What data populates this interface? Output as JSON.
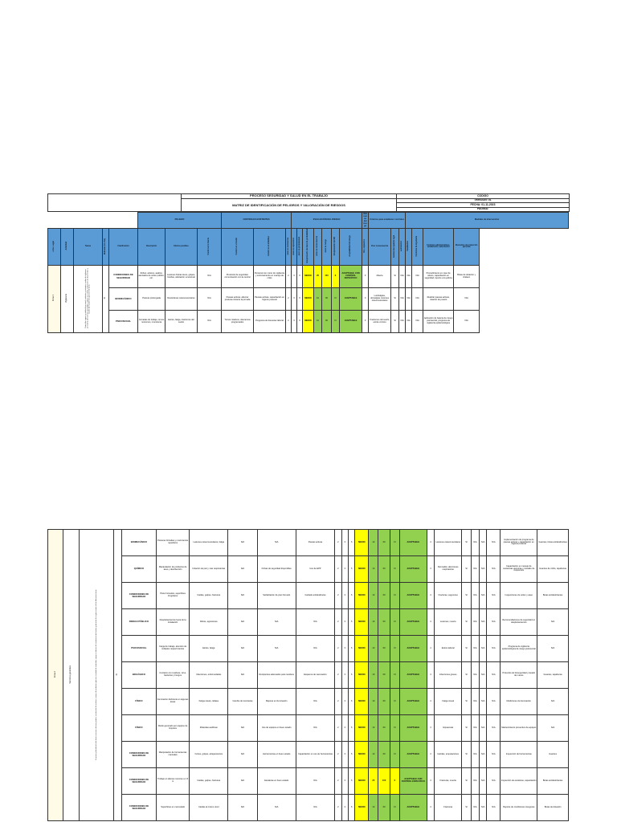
{
  "header": {
    "title1": "PROCESO SEGURIDAD Y SALUD EN EL TRABAJO",
    "title2": "MATRIZ DE IDENTIFICACIÓN DE PELIGROS Y VALORACIÓN DE RIESGOS",
    "code": "CODIGO",
    "version": "VERSION: 01",
    "date": "FECHA: 01-11-2023",
    "page": "PAGINA:"
  },
  "groups": {
    "peligro": "PELIGRO",
    "controles": "CONTROLES EXISTENTES",
    "evaluacion": "EVALUACIÓN DEL RIESGO",
    "valoracion": "Valoración del riesgo",
    "criterios": "Criterios para establecer controles",
    "medidas": "Medidas de intervención"
  },
  "columns": {
    "proceso": "Zona / Lugar",
    "actividad": "Actividad",
    "tareas": "Tareas",
    "rutinario": "Rutinario (Si o No)",
    "clasificacion": "Clasificación",
    "descripcion": "Descripción",
    "efectos": "Efectos posibles",
    "fuente": "Control en la fuente",
    "medio": "Control en el medio",
    "individuo": "Control en el individuo",
    "nd": "Nivel de deficiencia",
    "ne": "Nivel de exposición",
    "np": "Nivel de probabilidad",
    "interp_np": "Interpretación del nivel de probabilidad",
    "nc": "Nivel de consecuencia",
    "nr": "Nivel de riesgo",
    "interp_nr": "Interpretación del NR",
    "aceptabilidad": "Aceptabilidad del riesgo",
    "expuestos": "Nro. expuestos",
    "peor": "Peor consecuencia",
    "requisito": "Existencia requisito legal",
    "eliminacion": "Eliminación",
    "sustitucion": "Sustitución",
    "ingenieria": "Controles de ingeniería",
    "administrativos": "Controles administrativos, señalización, advertencia",
    "epp": "Elementos de protección personal"
  },
  "top_section": {
    "zona": "Zona 1",
    "actividad": "Vigilancia",
    "tareas": "Agentes de seguridad",
    "rutinario": "SI",
    "task_description": "Control de ingreso y salida de personal, vehículos y visitantes, rondas de vigilancia perimetral, atención de novedades, registro en minuta, verificación de documentos y reporte de eventos al supervisor de turno.",
    "rows": [
      {
        "clasificacion": "CONDICIONES DE SEGURIDAD",
        "descripcion": "Robos, atracos, asaltos, atentados de orden público, etc.",
        "efectos": "Lesiones físicas leves, golpes, heridas, afectación emocional",
        "fuente": "N/A",
        "medio": "Protocolo de seguridad, comunicación con la central",
        "individuo": "Personal con curso de vigilancia y entrenamiento en manejo de crisis",
        "nd": "2",
        "ne": "3",
        "np": "6",
        "interp_np": "MEDIO",
        "nc": "25",
        "nr": "150",
        "interp_nr": "II",
        "nivel_color": "yellow",
        "aceptabilidad": "ACEPTABLE CON CONTROL ESPECÍFICO",
        "expuestos": "3",
        "peor": "Muerte",
        "requisito": "SI",
        "eliminacion": "N/A",
        "sustitucion": "N/A",
        "ingenieria": "N/A",
        "administrativos": "Procedimiento en caso de atraco, capacitación en seguridad, reporte a la policía",
        "epp": "Botas de dotación y chaleco"
      },
      {
        "clasificacion": "BIOMECÁNICO",
        "descripcion": "Postura prolongada",
        "efectos": "Desórdenes osteomusculares",
        "fuente": "N/A",
        "medio": "Pausas activas, alternar posturas durante la jornada",
        "individuo": "Pausas activas, capacitación en higiene postural",
        "nd": "2",
        "ne": "3",
        "np": "6",
        "interp_np": "MEDIO",
        "nc": "10",
        "nr": "60",
        "interp_nr": "III",
        "nivel_color": "green",
        "aceptabilidad": "ACEPTABLE",
        "expuestos": "3",
        "peor": "Lumbalgias, dorsalgias, lesiones osteomusculares",
        "requisito": "SI",
        "eliminacion": "N/A",
        "sustitucion": "N/A",
        "ingenieria": "N/A",
        "administrativos": "Realizar pausas activas, rotación de puesto",
        "epp": "N/A"
      },
      {
        "clasificacion": "PSICOSOCIAL",
        "descripcion": "Jornadas de trabajo, turnos nocturnos, monotonía",
        "efectos": "Estrés, fatiga, trastornos del sueño",
        "fuente": "N/A",
        "medio": "Turnos rotativos, descansos programados",
        "individuo": "Programa de bienestar laboral",
        "nd": "2",
        "ne": "3",
        "np": "6",
        "interp_np": "MEDIO",
        "nc": "10",
        "nr": "60",
        "interp_nr": "III",
        "nivel_color": "green",
        "aceptabilidad": "ACEPTABLE",
        "expuestos": "3",
        "peor": "Trastornos del sueño, estrés crónico",
        "requisito": "SI",
        "eliminacion": "N/A",
        "sustitucion": "N/A",
        "ingenieria": "N/A",
        "administrativos": "Aplicación de batería de riesgo psicosocial, programa de vigilancia epidemiológica",
        "epp": "N/A"
      }
    ]
  },
  "bottom_section": {
    "zona": "Zona 2",
    "actividad": "Servicios generales",
    "tareas": "Aseo, mantenimiento y apoyo logístico",
    "rutinario": "SI",
    "task_description": "Limpieza y desinfección de áreas comunes, oficinas y baños, recolección de residuos, manejo de productos químicos, traslado de materiales, apoyo en labores de mantenimiento locativo y atención de requerimientos de las diferentes áreas.",
    "rows": [
      {
        "clasificacion": "BIOMECÁNICO",
        "descripcion": "Posturas forzadas y movimientos repetitivos",
        "efectos": "Lesiones osteomusculares, fatiga",
        "fuente": "N/A",
        "medio": "N/A",
        "individuo": "Pausas activas",
        "nd": "2",
        "ne": "3",
        "np": "6",
        "interp_np": "MEDIO",
        "nc": "10",
        "nr": "60",
        "interp_nr": "III",
        "nivel_color": "green",
        "aceptabilidad": "ACEPTABLE",
        "expuestos": "4",
        "peor": "Lesiones osteomusculares",
        "requisito": "SI",
        "eliminacion": "N/A",
        "sustitucion": "N/A",
        "ingenieria": "N/A",
        "administrativos": "Implementación de programa de pausas activas y capacitación en higiene postural",
        "epp": "Guantes, botas antideslizantes"
      },
      {
        "clasificacion": "QUÍMICO",
        "descripcion": "Manipulación de productos de aseo y desinfección",
        "efectos": "Irritación de piel y vías respiratorias",
        "fuente": "N/A",
        "medio": "Fichas de seguridad disponibles",
        "individuo": "Uso de EPP",
        "nd": "2",
        "ne": "3",
        "np": "6",
        "interp_np": "MEDIO",
        "nc": "10",
        "nr": "60",
        "interp_nr": "III",
        "nivel_color": "green",
        "aceptabilidad": "ACEPTABLE",
        "expuestos": "4",
        "peor": "Dermatitis, afecciones respiratorias",
        "requisito": "SI",
        "eliminacion": "N/A",
        "sustitucion": "N/A",
        "ingenieria": "N/A",
        "administrativos": "Capacitación en manejo de sustancias químicas y rotulado de recipientes",
        "epp": "Guantes de nitrilo, tapabocas"
      },
      {
        "clasificacion": "CONDICIONES DE SEGURIDAD",
        "descripcion": "Pisos húmedos, superficies irregulares",
        "efectos": "Caídas, golpes, fracturas",
        "fuente": "N/A",
        "medio": "Señalización de piso húmedo",
        "individuo": "Calzado antideslizante",
        "nd": "2",
        "ne": "3",
        "np": "6",
        "interp_np": "MEDIO",
        "nc": "10",
        "nr": "60",
        "interp_nr": "III",
        "nivel_color": "green",
        "aceptabilidad": "ACEPTABLE",
        "expuestos": "4",
        "peor": "Fracturas, esguinces",
        "requisito": "SI",
        "eliminacion": "N/A",
        "sustitucion": "N/A",
        "ingenieria": "N/A",
        "administrativos": "Inspecciones de orden y aseo",
        "epp": "Botas antideslizantes"
      },
      {
        "clasificacion": "RIESGO PÚBLICO",
        "descripcion": "Desplazamientos fuera de la instalación",
        "efectos": "Robos, agresiones",
        "fuente": "N/A",
        "medio": "N/A",
        "individuo": "N/A",
        "nd": "2",
        "ne": "3",
        "np": "6",
        "interp_np": "MEDIO",
        "nc": "10",
        "nr": "60",
        "interp_nr": "III",
        "nivel_color": "green",
        "aceptabilidad": "ACEPTABLE",
        "expuestos": "4",
        "peor": "Lesiones, muerte",
        "requisito": "SI",
        "eliminacion": "N/A",
        "sustitucion": "N/A",
        "ingenieria": "N/A",
        "administrativos": "Recomendaciones de seguridad en desplazamientos",
        "epp": "N/A"
      },
      {
        "clasificacion": "PSICOSOCIAL",
        "descripcion": "Carga de trabajo, atención de múltiples requerimientos",
        "efectos": "Estrés, fatiga",
        "fuente": "N/A",
        "medio": "N/A",
        "individuo": "N/A",
        "nd": "2",
        "ne": "3",
        "np": "6",
        "interp_np": "MEDIO",
        "nc": "10",
        "nr": "60",
        "interp_nr": "III",
        "nivel_color": "green",
        "aceptabilidad": "ACEPTABLE",
        "expuestos": "4",
        "peor": "Estrés laboral",
        "requisito": "SI",
        "eliminacion": "N/A",
        "sustitucion": "N/A",
        "ingenieria": "N/A",
        "administrativos": "Programa de vigilancia epidemiológica de riesgo psicosocial",
        "epp": "N/A"
      },
      {
        "clasificacion": "BIOLÓGICO",
        "descripcion": "Contacto con residuos, virus, bacterias y hongos",
        "efectos": "Infecciones, enfermedades",
        "fuente": "N/A",
        "medio": "Recipientes adecuados para residuos",
        "individuo": "Esquema de vacunación",
        "nd": "2",
        "ne": "3",
        "np": "6",
        "interp_np": "MEDIO",
        "nc": "10",
        "nr": "60",
        "interp_nr": "III",
        "nivel_color": "green",
        "aceptabilidad": "ACEPTABLE",
        "expuestos": "4",
        "peor": "Infecciones graves",
        "requisito": "SI",
        "eliminacion": "N/A",
        "sustitucion": "N/A",
        "ingenieria": "N/A",
        "administrativos": "Protocolo de bioseguridad y lavado de manos",
        "epp": "Guantes, tapabocas"
      },
      {
        "clasificacion": "FÍSICO",
        "descripcion": "Iluminación deficiente en algunas áreas",
        "efectos": "Fatiga visual, cefalea",
        "fuente": "Cambio de luminarias",
        "medio": "Mejoras en iluminación",
        "individuo": "N/A",
        "nd": "2",
        "ne": "3",
        "np": "6",
        "interp_np": "MEDIO",
        "nc": "10",
        "nr": "60",
        "interp_nr": "III",
        "nivel_color": "green",
        "aceptabilidad": "ACEPTABLE",
        "expuestos": "4",
        "peor": "Fatiga visual",
        "requisito": "SI",
        "eliminacion": "N/A",
        "sustitucion": "N/A",
        "ingenieria": "N/A",
        "administrativos": "Mediciones de iluminación",
        "epp": "N/A"
      },
      {
        "clasificacion": "FÍSICO",
        "descripcion": "Ruido generado por equipos de limpieza",
        "efectos": "Molestias auditivas",
        "fuente": "N/A",
        "medio": "Uso de equipos en buen estado",
        "individuo": "N/A",
        "nd": "2",
        "ne": "3",
        "np": "6",
        "interp_np": "MEDIO",
        "nc": "10",
        "nr": "60",
        "interp_nr": "III",
        "nivel_color": "green",
        "aceptabilidad": "ACEPTABLE",
        "expuestos": "4",
        "peor": "Hipoacusia",
        "requisito": "SI",
        "eliminacion": "N/A",
        "sustitucion": "N/A",
        "ingenieria": "N/A",
        "administrativos": "Mantenimiento preventivo de equipos",
        "epp": "N/A"
      },
      {
        "clasificacion": "CONDICIONES DE SEGURIDAD",
        "descripcion": "Manipulación de herramientas manuales",
        "efectos": "Cortes, golpes, atrapamientos",
        "fuente": "N/A",
        "medio": "Herramientas en buen estado",
        "individuo": "Capacitación en uso de herramientas",
        "nd": "2",
        "ne": "3",
        "np": "6",
        "interp_np": "MEDIO",
        "nc": "10",
        "nr": "60",
        "interp_nr": "III",
        "nivel_color": "green",
        "aceptabilidad": "ACEPTABLE",
        "expuestos": "4",
        "peor": "Heridas, amputaciones",
        "requisito": "SI",
        "eliminacion": "N/A",
        "sustitucion": "N/A",
        "ingenieria": "N/A",
        "administrativos": "Inspección de herramientas",
        "epp": "Guantes"
      },
      {
        "clasificacion": "CONDICIONES DE SEGURIDAD",
        "descripcion": "Trabajo en alturas menores a 1.5 m",
        "efectos": "Caídas, golpes, fracturas",
        "fuente": "N/A",
        "medio": "Escaleras en buen estado",
        "individuo": "N/A",
        "nd": "2",
        "ne": "3",
        "np": "6",
        "interp_np": "MEDIO",
        "nc": "25",
        "nr": "150",
        "interp_nr": "II",
        "nivel_color": "yellow",
        "aceptabilidad": "ACEPTABLE CON CONTROL ESPECÍFICO",
        "expuestos": "4",
        "peor": "Fracturas, muerte",
        "requisito": "SI",
        "eliminacion": "N/A",
        "sustitucion": "N/A",
        "ingenieria": "N/A",
        "administrativos": "Inspección de escaleras, capacitación",
        "epp": "Botas antideslizantes"
      },
      {
        "clasificacion": "CONDICIONES DE SEGURIDAD",
        "descripcion": "Superficies en mal estado",
        "efectos": "Caídas al mismo nivel",
        "fuente": "N/A",
        "medio": "N/A",
        "individuo": "N/A",
        "nd": "2",
        "ne": "3",
        "np": "6",
        "interp_np": "MEDIO",
        "nc": "10",
        "nr": "60",
        "interp_nr": "III",
        "nivel_color": "green",
        "aceptabilidad": "ACEPTABLE",
        "expuestos": "4",
        "peor": "Fracturas",
        "requisito": "SI",
        "eliminacion": "N/A",
        "sustitucion": "N/A",
        "ingenieria": "N/A",
        "administrativos": "Reporte de condiciones inseguras",
        "epp": "Botas de dotación"
      }
    ]
  }
}
